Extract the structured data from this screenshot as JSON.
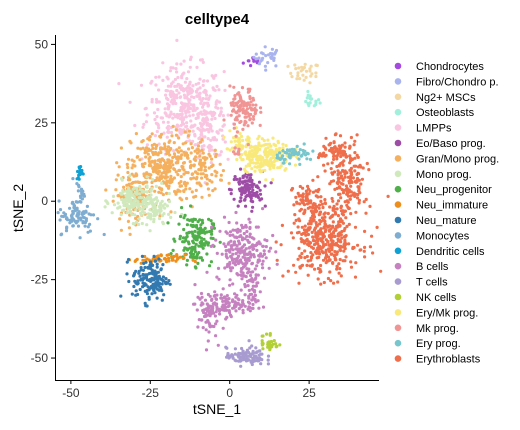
{
  "chart_data": {
    "type": "scatter",
    "title": "celltype4",
    "xlabel": "tSNE_1",
    "ylabel": "tSNE_2",
    "xlim": [
      -55,
      47
    ],
    "ylim": [
      -57,
      53
    ],
    "x_ticks": [
      -50,
      -25,
      0,
      25
    ],
    "y_ticks": [
      -50,
      -25,
      0,
      25,
      50
    ],
    "grid": false,
    "legend_position": "right",
    "series": [
      {
        "name": "Chondrocytes",
        "color": "#a54ae0",
        "clusters": [
          {
            "x": 8,
            "y": 44.5,
            "sx": 1.8,
            "sy": 0.9,
            "n": 10
          }
        ]
      },
      {
        "name": "Fibro/Chondro p.",
        "color": "#a9b4ef",
        "clusters": [
          {
            "x": 12,
            "y": 46,
            "sx": 2.2,
            "sy": 1.6,
            "n": 28
          }
        ]
      },
      {
        "name": "Ng2+ MSCs",
        "color": "#f4d8a3",
        "clusters": [
          {
            "x": 23.5,
            "y": 41,
            "sx": 2.5,
            "sy": 1.6,
            "n": 30
          }
        ]
      },
      {
        "name": "Osteoblasts",
        "color": "#a2f0dc",
        "clusters": [
          {
            "x": 25.5,
            "y": 32,
            "sx": 1.4,
            "sy": 1.2,
            "n": 18
          }
        ]
      },
      {
        "name": "LMPPs",
        "color": "#f9c5e0",
        "clusters": [
          {
            "x": -14,
            "y": 30,
            "sx": 6,
            "sy": 6.5,
            "n": 360
          },
          {
            "x": -6,
            "y": 22,
            "sx": 3,
            "sy": 4,
            "n": 80
          }
        ]
      },
      {
        "name": "Eo/Baso prog.",
        "color": "#9e4da6",
        "clusters": [
          {
            "x": 5.5,
            "y": 3.5,
            "sx": 2.4,
            "sy": 3,
            "n": 110
          }
        ]
      },
      {
        "name": "Gran/Mono prog.",
        "color": "#f5b05f",
        "clusters": [
          {
            "x": -21,
            "y": 11,
            "sx": 5,
            "sy": 5.5,
            "n": 300
          },
          {
            "x": -30,
            "y": 2,
            "sx": 3,
            "sy": 4,
            "n": 120
          },
          {
            "x": -8,
            "y": 10,
            "sx": 3,
            "sy": 4,
            "n": 90
          }
        ]
      },
      {
        "name": "Mono prog.",
        "color": "#cfe9bc",
        "clusters": [
          {
            "x": -30,
            "y": 0,
            "sx": 3.5,
            "sy": 3,
            "n": 140
          },
          {
            "x": -24,
            "y": -3,
            "sx": 3,
            "sy": 3,
            "n": 70
          }
        ]
      },
      {
        "name": "Neu_progenitor",
        "color": "#4faf49",
        "clusters": [
          {
            "x": -11,
            "y": -12,
            "sx": 2.8,
            "sy": 4,
            "n": 150
          }
        ]
      },
      {
        "name": "Neu_immature",
        "color": "#ef8f1b",
        "clusters": [
          {
            "x": -22,
            "y": -18.5,
            "sx": 4,
            "sy": 0.7,
            "n": 55
          }
        ]
      },
      {
        "name": "Neu_mature",
        "color": "#3279b0",
        "clusters": [
          {
            "x": -25,
            "y": -25,
            "sx": 2.8,
            "sy": 3.5,
            "n": 150
          }
        ]
      },
      {
        "name": "Monocytes",
        "color": "#7eadd1",
        "clusters": [
          {
            "x": -48,
            "y": -5,
            "sx": 3,
            "sy": 2.6,
            "n": 85
          },
          {
            "x": -47,
            "y": 3,
            "sx": 0.7,
            "sy": 2,
            "n": 20
          }
        ]
      },
      {
        "name": "Dendritic cells",
        "color": "#0fa1d4",
        "clusters": [
          {
            "x": -47,
            "y": 9,
            "sx": 0.6,
            "sy": 1.2,
            "n": 20
          }
        ]
      },
      {
        "name": "B cells",
        "color": "#c682c0",
        "clusters": [
          {
            "x": 4,
            "y": -16,
            "sx": 4,
            "sy": 5,
            "n": 230
          },
          {
            "x": -2,
            "y": -33,
            "sx": 4.5,
            "sy": 1.8,
            "n": 110
          },
          {
            "x": -7,
            "y": -37,
            "sx": 1.5,
            "sy": 3.5,
            "n": 50
          },
          {
            "x": 7,
            "y": -28,
            "sx": 1.5,
            "sy": 3,
            "n": 40
          }
        ]
      },
      {
        "name": "T cells",
        "color": "#a79bd0",
        "clusters": [
          {
            "x": 5,
            "y": -49.5,
            "sx": 3,
            "sy": 1.4,
            "n": 95
          }
        ]
      },
      {
        "name": "NK cells",
        "color": "#b2cf35",
        "clusters": [
          {
            "x": 12.5,
            "y": -45,
            "sx": 1.5,
            "sy": 1.8,
            "n": 32
          }
        ]
      },
      {
        "name": "Ery/Mk prog.",
        "color": "#f9e97a",
        "clusters": [
          {
            "x": 11,
            "y": 14.5,
            "sx": 4,
            "sy": 2.5,
            "n": 210
          },
          {
            "x": 3,
            "y": 19,
            "sx": 2,
            "sy": 2.5,
            "n": 40
          }
        ]
      },
      {
        "name": "Mk prog.",
        "color": "#f09594",
        "clusters": [
          {
            "x": 4.5,
            "y": 29,
            "sx": 2.2,
            "sy": 3.5,
            "n": 110
          },
          {
            "x": 2.5,
            "y": 15.5,
            "sx": 0.8,
            "sy": 0.8,
            "n": 10
          }
        ]
      },
      {
        "name": "Ery prog.",
        "color": "#78c6cd",
        "clusters": [
          {
            "x": 21,
            "y": 15,
            "sx": 3,
            "sy": 1.2,
            "n": 55
          }
        ]
      },
      {
        "name": "Erythroblasts",
        "color": "#ef6e4b",
        "clusters": [
          {
            "x": 30,
            "y": -12,
            "sx": 5.5,
            "sy": 6,
            "n": 380
          },
          {
            "x": 37,
            "y": 7,
            "sx": 3,
            "sy": 6,
            "n": 160
          },
          {
            "x": 33,
            "y": 16,
            "sx": 2.5,
            "sy": 2,
            "n": 60
          },
          {
            "x": 24,
            "y": 0,
            "sx": 2,
            "sy": 3,
            "n": 60
          }
        ]
      }
    ]
  }
}
